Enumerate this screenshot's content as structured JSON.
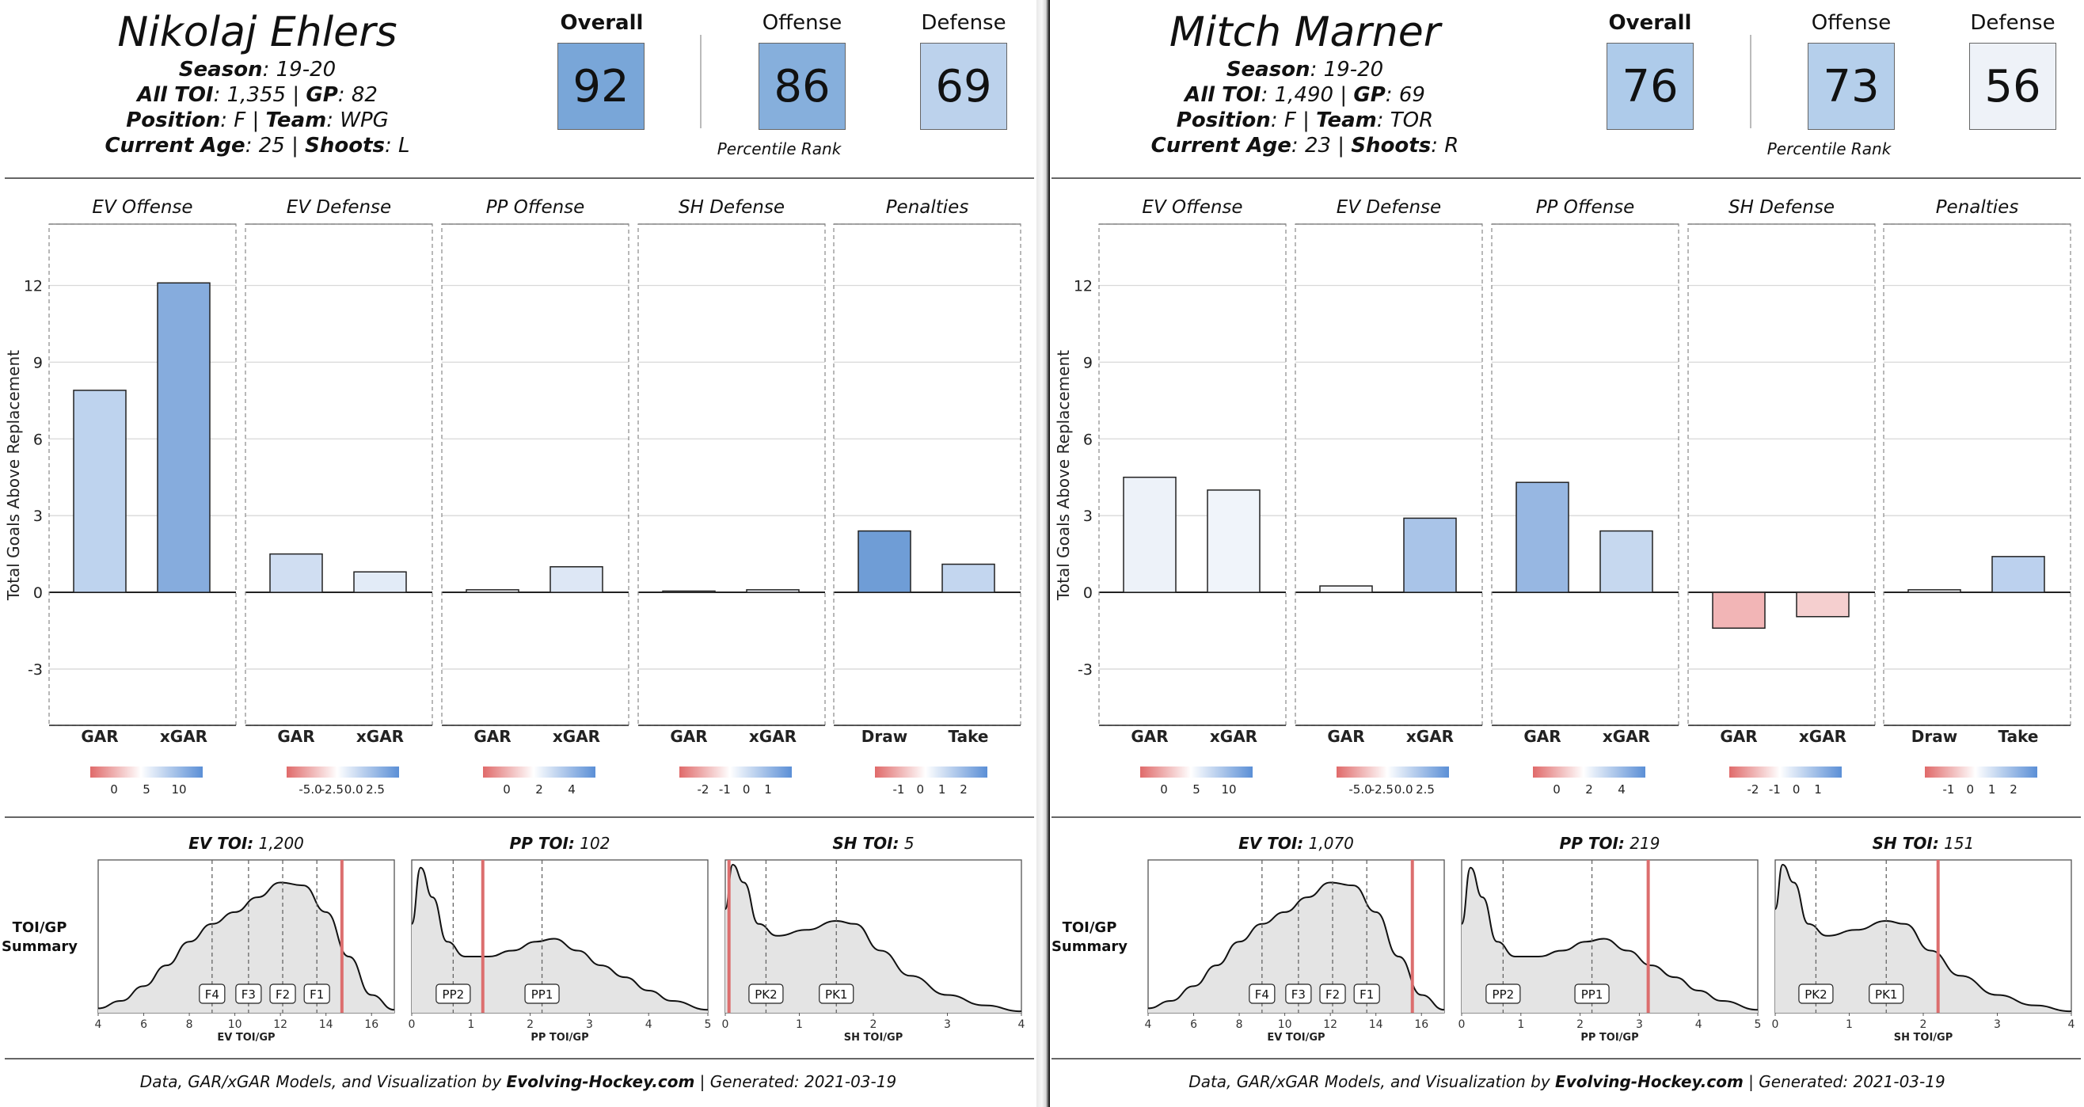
{
  "footer": {
    "prefix": "Data, GAR/xGAR Models, and Visualization by",
    "brand": "Evolving-Hockey.com",
    "generated": "| Generated: 2021-03-19"
  },
  "rank_labels": {
    "overall": "Overall",
    "offense": "Offense",
    "defense": "Defense",
    "percentile": "Percentile Rank"
  },
  "info_labels": {
    "season": "Season",
    "all_toi": "All TOI",
    "gp": "GP",
    "position": "Position",
    "team": "Team",
    "current_age": "Current Age",
    "shoots": "Shoots"
  },
  "chart_labels": {
    "y_axis": "Total Goals Above Replacement",
    "toi_summary": "TOI/GP\nSummary",
    "y_ticks": [
      12,
      9,
      6,
      3,
      0,
      -3
    ],
    "y_range": [
      -5.2,
      14.4
    ]
  },
  "players": [
    {
      "name": "Nikolaj Ehlers",
      "season": "19-20",
      "all_toi": "1,355",
      "gp": "82",
      "position": "F",
      "team": "WPG",
      "current_age": "25",
      "shoots": "L",
      "ranks": {
        "overall": 92,
        "offense": 86,
        "defense": 69
      },
      "rank_colors": {
        "overall": "#79a6d8",
        "offense": "#86afdc",
        "defense": "#bcd2ec"
      }
    },
    {
      "name": "Mitch Marner",
      "season": "19-20",
      "all_toi": "1,490",
      "gp": "69",
      "position": "F",
      "team": "TOR",
      "current_age": "23",
      "shoots": "R",
      "ranks": {
        "overall": 76,
        "offense": 73,
        "defense": 56
      },
      "rank_colors": {
        "overall": "#aecbea",
        "offense": "#b5cfeb",
        "defense": "#eef2f8"
      }
    }
  ],
  "chart_data": [
    {
      "type": "bar",
      "player": "Nikolaj Ehlers",
      "ylabel": "Total Goals Above Replacement",
      "ylim": [
        -5.2,
        14.4
      ],
      "facets": [
        {
          "title": "EV Offense",
          "categories": [
            "GAR",
            "xGAR"
          ],
          "values": [
            7.9,
            12.1
          ],
          "colors": [
            "#bed3ee",
            "#86acdd"
          ],
          "legend_ticks": [
            "0",
            "5",
            "10"
          ]
        },
        {
          "title": "EV Defense",
          "categories": [
            "GAR",
            "xGAR"
          ],
          "values": [
            1.5,
            0.8
          ],
          "colors": [
            "#d0def2",
            "#e2ebf7"
          ],
          "legend_ticks": [
            "-5.0",
            "-2.5",
            "0.0",
            "2.5"
          ]
        },
        {
          "title": "PP Offense",
          "categories": [
            "GAR",
            "xGAR"
          ],
          "values": [
            0.1,
            1.0
          ],
          "colors": [
            "#f4f6fb",
            "#dde7f5"
          ],
          "legend_ticks": [
            "0",
            "2",
            "4"
          ]
        },
        {
          "title": "SH Defense",
          "categories": [
            "GAR",
            "xGAR"
          ],
          "values": [
            0.05,
            0.1
          ],
          "colors": [
            "#f1f4fa",
            "#eef2f9"
          ],
          "legend_ticks": [
            "-2",
            "-1",
            "0",
            "1"
          ]
        },
        {
          "title": "Penalties",
          "categories": [
            "Draw",
            "Take"
          ],
          "values": [
            2.4,
            1.1
          ],
          "colors": [
            "#6f9dd6",
            "#c3d6ef"
          ],
          "legend_ticks": [
            "-1",
            "0",
            "1",
            "2"
          ]
        }
      ],
      "toi_panels": [
        {
          "label": "EV TOI",
          "value": "1,200",
          "xlabel": "EV TOI/GP",
          "ticks": [
            "4",
            "6",
            "8",
            "10",
            "12",
            "14",
            "16"
          ],
          "xrange": [
            4,
            17
          ],
          "marker": 14.7,
          "refs": [
            {
              "label": "F4",
              "x": 9.0
            },
            {
              "label": "F3",
              "x": 10.6
            },
            {
              "label": "F2",
              "x": 12.1
            },
            {
              "label": "F1",
              "x": 13.6
            }
          ],
          "density": [
            [
              4,
              0.03
            ],
            [
              5,
              0.08
            ],
            [
              6,
              0.18
            ],
            [
              7,
              0.32
            ],
            [
              8,
              0.48
            ],
            [
              9,
              0.6
            ],
            [
              10,
              0.68
            ],
            [
              11,
              0.78
            ],
            [
              12,
              0.88
            ],
            [
              13,
              0.86
            ],
            [
              14,
              0.68
            ],
            [
              15,
              0.38
            ],
            [
              16,
              0.12
            ],
            [
              17,
              0.02
            ]
          ]
        },
        {
          "label": "PP TOI",
          "value": "102",
          "xlabel": "PP TOI/GP",
          "ticks": [
            "0",
            "1",
            "2",
            "3",
            "4",
            "5"
          ],
          "xrange": [
            0,
            5
          ],
          "marker": 1.2,
          "refs": [
            {
              "label": "PP2",
              "x": 0.7
            },
            {
              "label": "PP1",
              "x": 2.2
            }
          ],
          "density": [
            [
              0,
              0.6
            ],
            [
              0.15,
              0.98
            ],
            [
              0.35,
              0.78
            ],
            [
              0.6,
              0.48
            ],
            [
              0.9,
              0.38
            ],
            [
              1.3,
              0.38
            ],
            [
              1.7,
              0.42
            ],
            [
              2.1,
              0.48
            ],
            [
              2.4,
              0.5
            ],
            [
              2.8,
              0.42
            ],
            [
              3.2,
              0.32
            ],
            [
              3.6,
              0.24
            ],
            [
              4.0,
              0.15
            ],
            [
              4.4,
              0.08
            ],
            [
              5,
              0.02
            ]
          ]
        },
        {
          "label": "SH TOI",
          "value": "5",
          "xlabel": "SH TOI/GP",
          "ticks": [
            "0",
            "1",
            "2",
            "3",
            "4"
          ],
          "xrange": [
            0,
            4
          ],
          "marker": 0.05,
          "refs": [
            {
              "label": "PK2",
              "x": 0.55
            },
            {
              "label": "PK1",
              "x": 1.5
            }
          ],
          "density": [
            [
              0,
              0.7
            ],
            [
              0.1,
              1.0
            ],
            [
              0.25,
              0.88
            ],
            [
              0.45,
              0.6
            ],
            [
              0.7,
              0.52
            ],
            [
              1.1,
              0.56
            ],
            [
              1.5,
              0.62
            ],
            [
              1.75,
              0.6
            ],
            [
              2.1,
              0.42
            ],
            [
              2.5,
              0.25
            ],
            [
              3.0,
              0.12
            ],
            [
              3.5,
              0.05
            ],
            [
              4,
              0.01
            ]
          ]
        }
      ]
    },
    {
      "type": "bar",
      "player": "Mitch Marner",
      "ylabel": "Total Goals Above Replacement",
      "ylim": [
        -5.2,
        14.4
      ],
      "facets": [
        {
          "title": "EV Offense",
          "categories": [
            "GAR",
            "xGAR"
          ],
          "values": [
            4.5,
            4.0
          ],
          "colors": [
            "#edf2f9",
            "#f0f4fa"
          ],
          "legend_ticks": [
            "0",
            "5",
            "10"
          ]
        },
        {
          "title": "EV Defense",
          "categories": [
            "GAR",
            "xGAR"
          ],
          "values": [
            0.25,
            2.9
          ],
          "colors": [
            "#f5f6f9",
            "#a9c4e8"
          ],
          "legend_ticks": [
            "-5.0",
            "-2.5",
            "0.0",
            "2.5"
          ]
        },
        {
          "title": "PP Offense",
          "categories": [
            "GAR",
            "xGAR"
          ],
          "values": [
            4.3,
            2.4
          ],
          "colors": [
            "#97b7e2",
            "#c6d8ef"
          ],
          "legend_ticks": [
            "0",
            "2",
            "4"
          ]
        },
        {
          "title": "SH Defense",
          "categories": [
            "GAR",
            "xGAR"
          ],
          "values": [
            -1.4,
            -0.95
          ],
          "colors": [
            "#f2b5b6",
            "#f5cfcf"
          ],
          "legend_ticks": [
            "-2",
            "-1",
            "0",
            "1"
          ]
        },
        {
          "title": "Penalties",
          "categories": [
            "Draw",
            "Take"
          ],
          "values": [
            0.1,
            1.4
          ],
          "colors": [
            "#f3f4f8",
            "#bcd1ee"
          ],
          "legend_ticks": [
            "-1",
            "0",
            "1",
            "2"
          ]
        }
      ],
      "toi_panels": [
        {
          "label": "EV TOI",
          "value": "1,070",
          "xlabel": "EV TOI/GP",
          "ticks": [
            "4",
            "6",
            "8",
            "10",
            "12",
            "14",
            "16"
          ],
          "xrange": [
            4,
            17
          ],
          "marker": 15.6,
          "refs": [
            {
              "label": "F4",
              "x": 9.0
            },
            {
              "label": "F3",
              "x": 10.6
            },
            {
              "label": "F2",
              "x": 12.1
            },
            {
              "label": "F1",
              "x": 13.6
            }
          ],
          "density": [
            [
              4,
              0.03
            ],
            [
              5,
              0.08
            ],
            [
              6,
              0.18
            ],
            [
              7,
              0.32
            ],
            [
              8,
              0.48
            ],
            [
              9,
              0.6
            ],
            [
              10,
              0.68
            ],
            [
              11,
              0.78
            ],
            [
              12,
              0.88
            ],
            [
              13,
              0.86
            ],
            [
              14,
              0.68
            ],
            [
              15,
              0.38
            ],
            [
              16,
              0.12
            ],
            [
              17,
              0.02
            ]
          ]
        },
        {
          "label": "PP TOI",
          "value": "219",
          "xlabel": "PP TOI/GP",
          "ticks": [
            "0",
            "1",
            "2",
            "3",
            "4",
            "5"
          ],
          "xrange": [
            0,
            5
          ],
          "marker": 3.15,
          "refs": [
            {
              "label": "PP2",
              "x": 0.7
            },
            {
              "label": "PP1",
              "x": 2.2
            }
          ],
          "density": [
            [
              0,
              0.6
            ],
            [
              0.15,
              0.98
            ],
            [
              0.35,
              0.78
            ],
            [
              0.6,
              0.48
            ],
            [
              0.9,
              0.38
            ],
            [
              1.3,
              0.38
            ],
            [
              1.7,
              0.42
            ],
            [
              2.1,
              0.48
            ],
            [
              2.4,
              0.5
            ],
            [
              2.8,
              0.42
            ],
            [
              3.2,
              0.32
            ],
            [
              3.6,
              0.24
            ],
            [
              4.0,
              0.15
            ],
            [
              4.4,
              0.08
            ],
            [
              5,
              0.02
            ]
          ]
        },
        {
          "label": "SH TOI",
          "value": "151",
          "xlabel": "SH TOI/GP",
          "ticks": [
            "0",
            "1",
            "2",
            "3",
            "4"
          ],
          "xrange": [
            0,
            4
          ],
          "marker": 2.2,
          "refs": [
            {
              "label": "PK2",
              "x": 0.55
            },
            {
              "label": "PK1",
              "x": 1.5
            }
          ],
          "density": [
            [
              0,
              0.7
            ],
            [
              0.1,
              1.0
            ],
            [
              0.25,
              0.88
            ],
            [
              0.45,
              0.6
            ],
            [
              0.7,
              0.52
            ],
            [
              1.1,
              0.56
            ],
            [
              1.5,
              0.62
            ],
            [
              1.75,
              0.6
            ],
            [
              2.1,
              0.42
            ],
            [
              2.5,
              0.25
            ],
            [
              3.0,
              0.12
            ],
            [
              3.5,
              0.05
            ],
            [
              4,
              0.01
            ]
          ]
        }
      ]
    }
  ]
}
